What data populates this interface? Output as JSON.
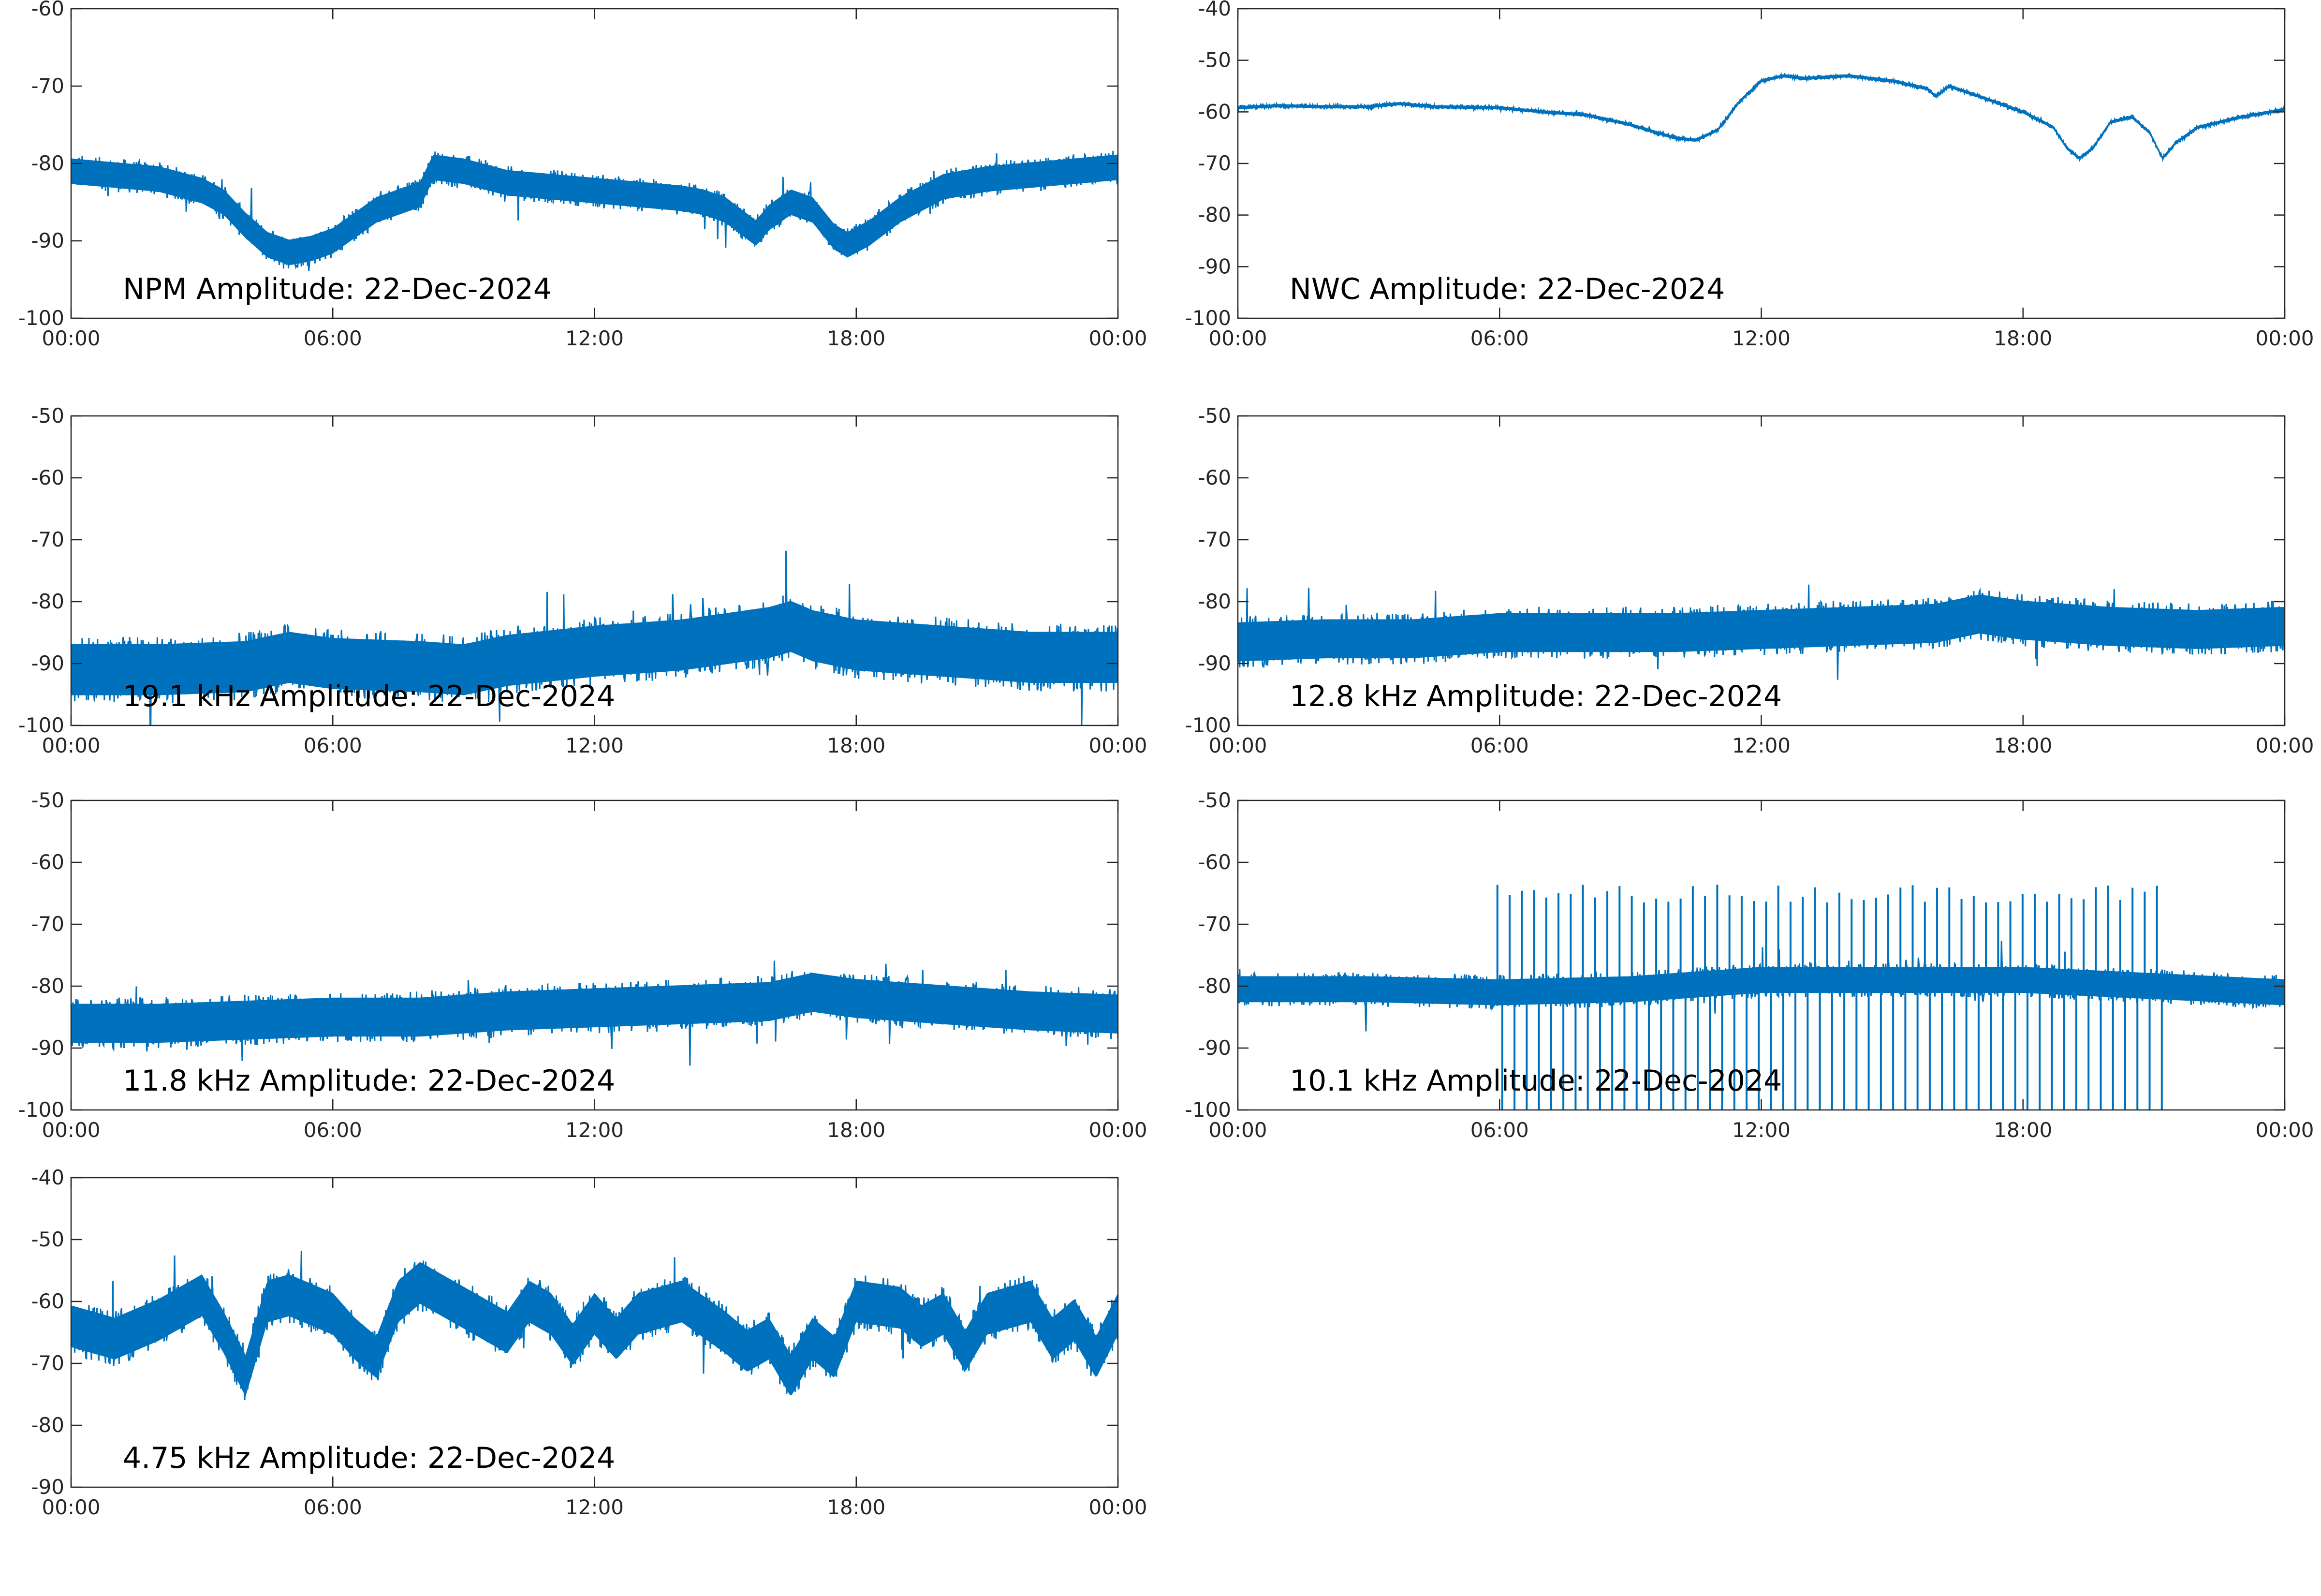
{
  "colors": {
    "series": "#0072bd",
    "axis": "#262626",
    "background": "#ffffff"
  },
  "chart_data": [
    {
      "type": "line",
      "title": "NPM Amplitude: 22-Dec-2024",
      "xlabel": "",
      "ylabel": "",
      "xlim": [
        0,
        24
      ],
      "ylim": [
        -100,
        -60
      ],
      "x_ticks": [
        "00:00",
        "06:00",
        "12:00",
        "18:00",
        "00:00"
      ],
      "y_ticks": [
        "-100",
        "-90",
        "-80",
        "-70",
        "-60"
      ],
      "grid": false,
      "series": [
        {
          "points": [
            [
              0,
              -81
            ],
            [
              1,
              -81.5
            ],
            [
              2,
              -82
            ],
            [
              3,
              -83.5
            ],
            [
              3.5,
              -85
            ],
            [
              4,
              -88
            ],
            [
              4.5,
              -90.5
            ],
            [
              5,
              -91.5
            ],
            [
              5.5,
              -91
            ],
            [
              6,
              -90
            ],
            [
              6.5,
              -88
            ],
            [
              7,
              -86
            ],
            [
              7.5,
              -85
            ],
            [
              8,
              -84
            ],
            [
              8.3,
              -80.5
            ],
            [
              9,
              -81
            ],
            [
              10,
              -82.5
            ],
            [
              11,
              -83
            ],
            [
              12,
              -83.5
            ],
            [
              13,
              -84
            ],
            [
              14,
              -84.5
            ],
            [
              14.5,
              -85
            ],
            [
              15,
              -86
            ],
            [
              15.7,
              -89
            ],
            [
              16,
              -87
            ],
            [
              16.5,
              -85
            ],
            [
              17,
              -86
            ],
            [
              17.5,
              -89.5
            ],
            [
              17.8,
              -90.5
            ],
            [
              18.3,
              -89
            ],
            [
              19,
              -86
            ],
            [
              20,
              -83
            ],
            [
              21,
              -82
            ],
            [
              22,
              -81.5
            ],
            [
              23,
              -81
            ],
            [
              24,
              -80.5
            ]
          ],
          "spread": 2.2
        }
      ]
    },
    {
      "type": "line",
      "title": "NWC Amplitude: 22-Dec-2024",
      "xlabel": "",
      "ylabel": "",
      "xlim": [
        0,
        24
      ],
      "ylim": [
        -100,
        -40
      ],
      "x_ticks": [
        "00:00",
        "06:00",
        "12:00",
        "18:00",
        "00:00"
      ],
      "y_ticks": [
        "-100",
        "-90",
        "-80",
        "-70",
        "-60",
        "-50",
        "-40"
      ],
      "grid": false,
      "series": [
        {
          "points": [
            [
              0,
              -59.2
            ],
            [
              0.9,
              -58.8
            ],
            [
              2,
              -59
            ],
            [
              3,
              -59
            ],
            [
              3.7,
              -58.4
            ],
            [
              4.5,
              -59
            ],
            [
              6,
              -59.2
            ],
            [
              7,
              -60
            ],
            [
              8,
              -60.6
            ],
            [
              9,
              -62.5
            ],
            [
              10,
              -65
            ],
            [
              10.5,
              -65.5
            ],
            [
              11,
              -63.5
            ],
            [
              11.5,
              -58
            ],
            [
              12,
              -54
            ],
            [
              12.5,
              -53
            ],
            [
              13,
              -53.5
            ],
            [
              14,
              -53
            ],
            [
              15,
              -54
            ],
            [
              15.8,
              -55.5
            ],
            [
              16,
              -57
            ],
            [
              16.3,
              -55
            ],
            [
              17,
              -57
            ],
            [
              18,
              -60
            ],
            [
              18.7,
              -63
            ],
            [
              19,
              -67
            ],
            [
              19.3,
              -69
            ],
            [
              19.6,
              -67
            ],
            [
              20,
              -62
            ],
            [
              20.5,
              -61
            ],
            [
              20.9,
              -64
            ],
            [
              21.2,
              -69
            ],
            [
              21.5,
              -66
            ],
            [
              22,
              -63
            ],
            [
              23,
              -61
            ],
            [
              24,
              -59.5
            ]
          ],
          "spread": 0.4
        }
      ]
    },
    {
      "type": "line",
      "title": "19.1 kHz Amplitude: 22-Dec-2024",
      "xlabel": "",
      "ylabel": "",
      "xlim": [
        0,
        24
      ],
      "ylim": [
        -100,
        -50
      ],
      "x_ticks": [
        "00:00",
        "06:00",
        "12:00",
        "18:00",
        "00:00"
      ],
      "y_ticks": [
        "-100",
        "-90",
        "-80",
        "-70",
        "-60",
        "-50"
      ],
      "grid": false,
      "series": [
        {
          "points": [
            [
              0,
              -91
            ],
            [
              2,
              -91
            ],
            [
              4,
              -90.5
            ],
            [
              5,
              -89
            ],
            [
              6,
              -90
            ],
            [
              8,
              -90.5
            ],
            [
              9,
              -91
            ],
            [
              10,
              -89.5
            ],
            [
              12,
              -88
            ],
            [
              14,
              -87
            ],
            [
              15,
              -86
            ],
            [
              16,
              -85
            ],
            [
              16.5,
              -84
            ],
            [
              17,
              -85.5
            ],
            [
              18,
              -87
            ],
            [
              20,
              -88
            ],
            [
              22,
              -89
            ],
            [
              24,
              -89
            ]
          ],
          "spread": 5.5
        }
      ]
    },
    {
      "type": "line",
      "title": "12.8 kHz Amplitude: 22-Dec-2024",
      "xlabel": "",
      "ylabel": "",
      "xlim": [
        0,
        24
      ],
      "ylim": [
        -100,
        -50
      ],
      "x_ticks": [
        "00:00",
        "06:00",
        "12:00",
        "18:00",
        "00:00"
      ],
      "y_ticks": [
        "-100",
        "-90",
        "-80",
        "-70",
        "-60",
        "-50"
      ],
      "grid": false,
      "series": [
        {
          "points": [
            [
              0,
              -86.5
            ],
            [
              2,
              -86
            ],
            [
              4,
              -86
            ],
            [
              6,
              -85
            ],
            [
              8,
              -85
            ],
            [
              10,
              -85
            ],
            [
              12,
              -84.5
            ],
            [
              14,
              -84
            ],
            [
              16,
              -83.5
            ],
            [
              17,
              -82
            ],
            [
              18,
              -83
            ],
            [
              20,
              -84
            ],
            [
              22,
              -84.5
            ],
            [
              24,
              -84
            ]
          ],
          "spread": 4.2
        }
      ]
    },
    {
      "type": "line",
      "title": "11.8 kHz Amplitude: 22-Dec-2024",
      "xlabel": "",
      "ylabel": "",
      "xlim": [
        0,
        24
      ],
      "ylim": [
        -100,
        -50
      ],
      "x_ticks": [
        "00:00",
        "06:00",
        "12:00",
        "18:00",
        "00:00"
      ],
      "y_ticks": [
        "-100",
        "-90",
        "-80",
        "-70",
        "-60",
        "-50"
      ],
      "grid": false,
      "series": [
        {
          "points": [
            [
              0,
              -86
            ],
            [
              2,
              -86
            ],
            [
              4,
              -85.5
            ],
            [
              6,
              -85
            ],
            [
              8,
              -85
            ],
            [
              10,
              -84
            ],
            [
              12,
              -83.5
            ],
            [
              14,
              -83
            ],
            [
              16,
              -82.5
            ],
            [
              17,
              -81
            ],
            [
              18,
              -82
            ],
            [
              20,
              -83
            ],
            [
              22,
              -84
            ],
            [
              24,
              -84.5
            ]
          ],
          "spread": 4.2
        }
      ]
    },
    {
      "type": "line",
      "title": "10.1 kHz Amplitude: 22-Dec-2024",
      "xlabel": "",
      "ylabel": "",
      "xlim": [
        0,
        24
      ],
      "ylim": [
        -100,
        -50
      ],
      "x_ticks": [
        "00:00",
        "06:00",
        "12:00",
        "18:00",
        "00:00"
      ],
      "y_ticks": [
        "-100",
        "-90",
        "-80",
        "-70",
        "-60",
        "-50"
      ],
      "grid": false,
      "series": [
        {
          "points": [
            [
              0,
              -80.5
            ],
            [
              3,
              -80.5
            ],
            [
              6,
              -81
            ],
            [
              9,
              -80.5
            ],
            [
              12,
              -79
            ],
            [
              15,
              -79
            ],
            [
              18,
              -79
            ],
            [
              21,
              -80
            ],
            [
              24,
              -81
            ]
          ],
          "spread": 2.8,
          "pulses": {
            "start": 5.95,
            "end": 21.1,
            "period": 0.28,
            "peak": -65,
            "trough": -100
          }
        }
      ]
    },
    {
      "type": "line",
      "title": "4.75 kHz Amplitude: 22-Dec-2024",
      "xlabel": "",
      "ylabel": "",
      "xlim": [
        0,
        24
      ],
      "ylim": [
        -90,
        -40
      ],
      "x_ticks": [
        "00:00",
        "06:00",
        "12:00",
        "18:00",
        "00:00"
      ],
      "y_ticks": [
        "-90",
        "-80",
        "-70",
        "-60",
        "-50",
        "-40"
      ],
      "grid": false,
      "series": [
        {
          "points": [
            [
              0,
              -64
            ],
            [
              1,
              -66
            ],
            [
              2,
              -63
            ],
            [
              3,
              -59
            ],
            [
              3.5,
              -65
            ],
            [
              4,
              -72
            ],
            [
              4.5,
              -60
            ],
            [
              5,
              -59
            ],
            [
              6,
              -62
            ],
            [
              6.5,
              -66
            ],
            [
              7,
              -69
            ],
            [
              7.5,
              -60
            ],
            [
              8,
              -57
            ],
            [
              9,
              -61
            ],
            [
              10,
              -65
            ],
            [
              10.5,
              -60
            ],
            [
              11,
              -62
            ],
            [
              11.5,
              -67
            ],
            [
              12,
              -62
            ],
            [
              12.5,
              -66
            ],
            [
              13,
              -62
            ],
            [
              14,
              -60
            ],
            [
              15,
              -65
            ],
            [
              15.5,
              -68
            ],
            [
              16,
              -66
            ],
            [
              16.5,
              -72
            ],
            [
              17,
              -66
            ],
            [
              17.5,
              -69
            ],
            [
              18,
              -60
            ],
            [
              19,
              -61
            ],
            [
              19.5,
              -64
            ],
            [
              20,
              -62
            ],
            [
              20.5,
              -68
            ],
            [
              21,
              -62
            ],
            [
              22,
              -60
            ],
            [
              22.5,
              -66
            ],
            [
              23,
              -63
            ],
            [
              23.5,
              -69
            ],
            [
              24,
              -62
            ]
          ],
          "spread": 4.5
        }
      ]
    }
  ]
}
